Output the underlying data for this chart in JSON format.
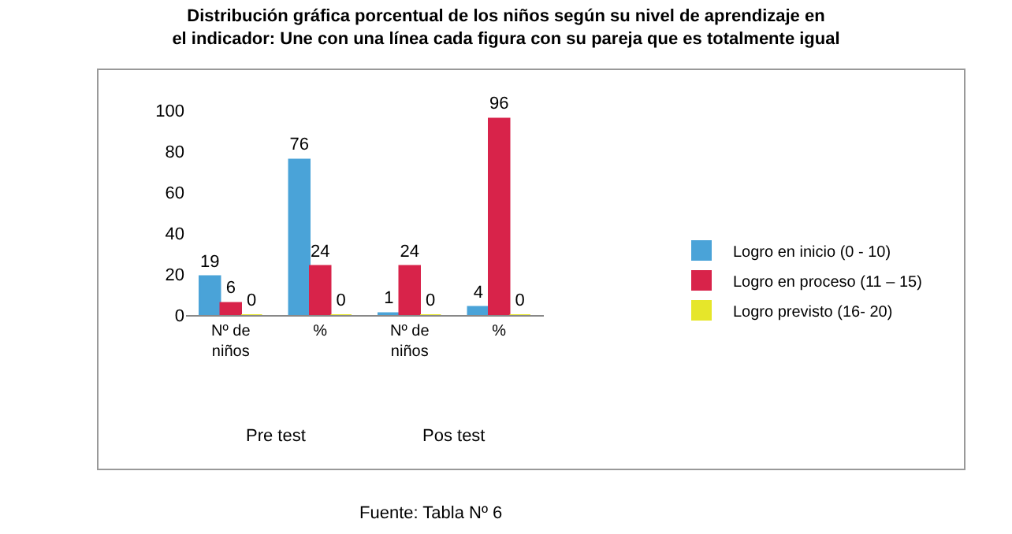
{
  "chart_data": {
    "type": "bar",
    "title": "Distribución gráfica porcentual de los niños según su nivel de aprendizaje en el indicador: Une con una línea cada figura con su pareja que es totalmente igual",
    "categories": [
      "Nº de niños",
      "%",
      "Nº de niños",
      "%"
    ],
    "series": [
      {
        "name": "Logro en inicio (0 - 10)",
        "color": "#4aa3d8",
        "values": [
          19,
          76,
          1,
          4
        ]
      },
      {
        "name": "Logro en proceso (11 – 15)",
        "color": "#d8234a",
        "values": [
          6,
          24,
          24,
          96
        ]
      },
      {
        "name": "Logro previsto (16- 20)",
        "color": "#e6e62a",
        "values": [
          0,
          0,
          0,
          0
        ]
      }
    ],
    "ylim": [
      0,
      100
    ],
    "yticks": [
      0,
      20,
      40,
      60,
      80,
      100
    ],
    "data_labels": true,
    "legend": "right",
    "annotations": [
      "Pre test",
      "Pos test",
      "Fuente: Tabla Nº 6"
    ]
  }
}
